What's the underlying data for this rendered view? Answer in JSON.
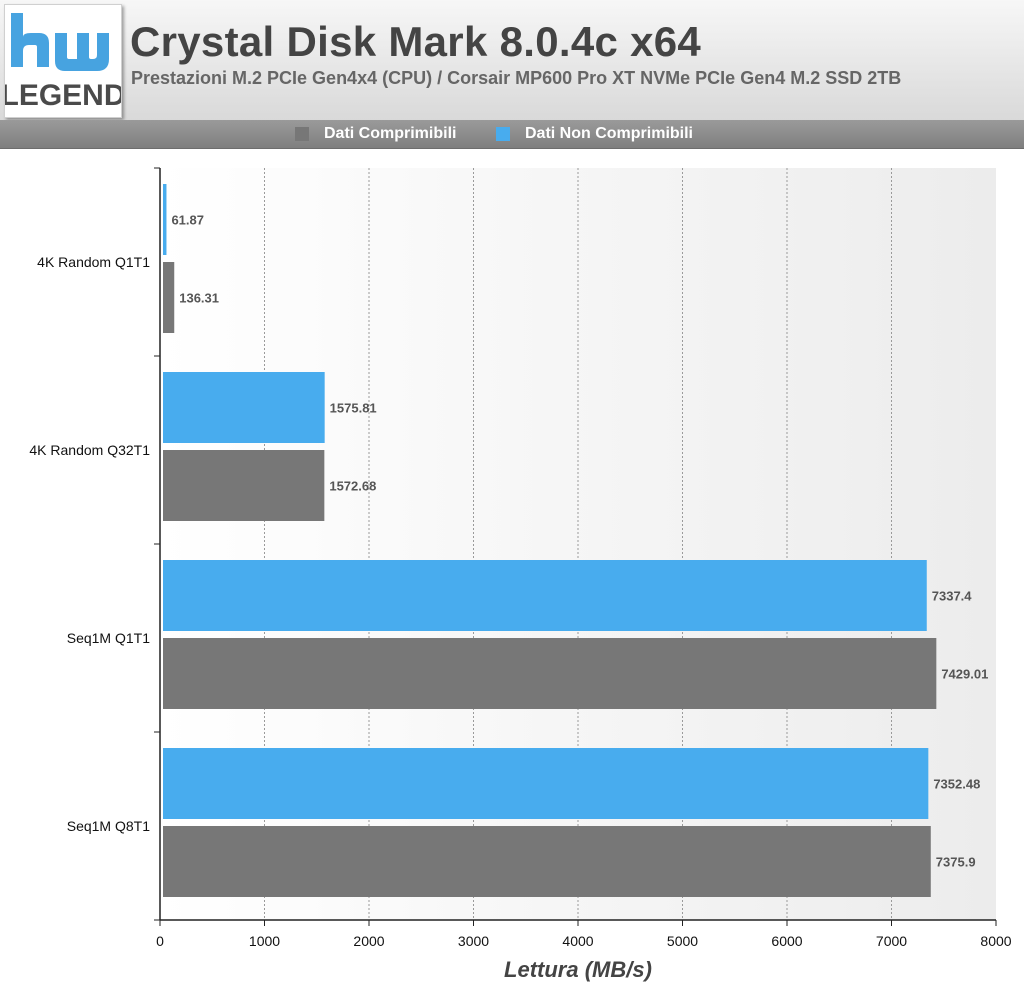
{
  "header": {
    "logo_text_top": "hw",
    "logo_text_bottom": "LEGEND",
    "title": "Crystal Disk Mark 8.0.4c x64",
    "subtitle": "Prestazioni M.2 PCIe Gen4x4 (CPU) / Corsair MP600 Pro XT NVMe PCIe Gen4 M.2 SSD 2TB"
  },
  "legend": [
    {
      "label": "Dati Comprimibili",
      "color": "#777777"
    },
    {
      "label": "Dati Non Comprimibili",
      "color": "#48acee"
    }
  ],
  "chart_data": {
    "type": "bar",
    "orientation": "horizontal",
    "title": "Crystal Disk Mark 8.0.4c x64",
    "xlabel": "Lettura (MB/s)",
    "ylabel": "",
    "xlim": [
      0,
      8000
    ],
    "xticks": [
      0,
      1000,
      2000,
      3000,
      4000,
      5000,
      6000,
      7000,
      8000
    ],
    "grid": true,
    "legend_position": "top",
    "categories": [
      "4K Random Q1T1",
      "4K Random Q32T1",
      "Seq1M Q1T1",
      "Seq1M Q8T1"
    ],
    "series": [
      {
        "name": "Dati Non Comprimibili",
        "color": "#48acee",
        "values": [
          61.87,
          1575.81,
          7337.4,
          7352.48
        ],
        "labels": [
          "61.87",
          "1575.81",
          "7337.4",
          "7352.48"
        ]
      },
      {
        "name": "Dati Comprimibili",
        "color": "#777777",
        "values": [
          136.31,
          1572.68,
          7429.01,
          7375.9
        ],
        "labels": [
          "136.31",
          "1572.68",
          "7429.01",
          "7375.9"
        ]
      }
    ]
  }
}
